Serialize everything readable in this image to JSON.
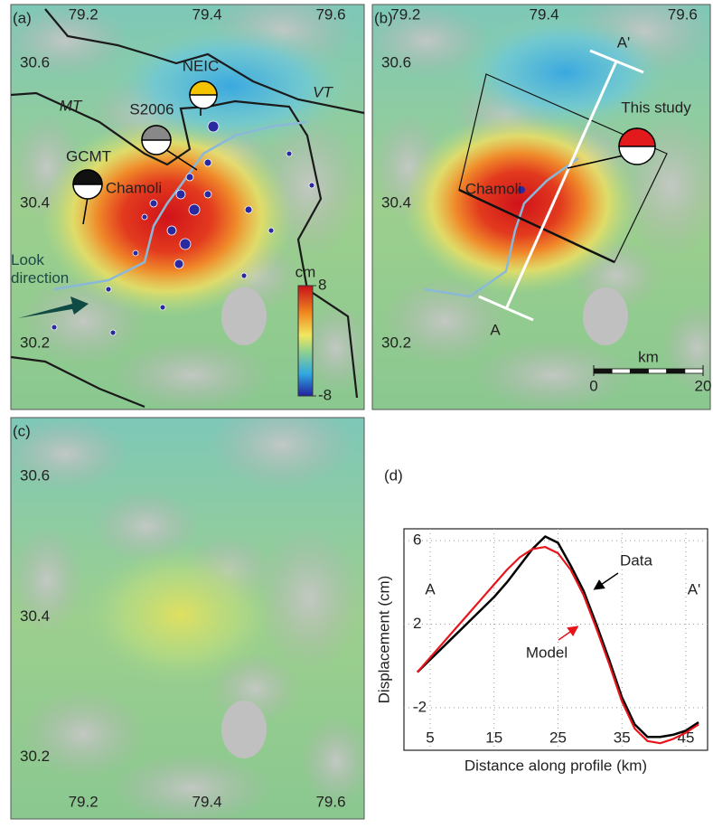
{
  "panels": [
    {
      "label": "(a)",
      "xlim": [
        79.083,
        79.654
      ],
      "ylim": [
        30.106,
        30.684
      ],
      "xticks": [
        79.2,
        79.4,
        79.6
      ],
      "yticks": [
        30.6,
        30.4,
        30.2
      ],
      "annotations": [
        "NEIC",
        "S2006",
        "GCMT",
        "MT",
        "VT",
        "Chamoli",
        "Look direction"
      ],
      "colorbar": {
        "label": "cm",
        "clim": [
          -8,
          8
        ],
        "ticks": [
          8,
          -8
        ]
      }
    },
    {
      "label": "(b)",
      "xlim": [
        79.152,
        79.64
      ],
      "ylim": [
        30.106,
        30.684
      ],
      "xticks": [
        79.2,
        79.4,
        79.6
      ],
      "yticks": [
        30.6,
        30.4,
        30.2
      ],
      "annotations": [
        "A'",
        "This study",
        "Chamoli",
        "A"
      ],
      "scale_bar": {
        "label": "km",
        "ticks": [
          0,
          20
        ]
      }
    },
    {
      "label": "(c)",
      "xlim": [
        79.083,
        79.654
      ],
      "ylim": [
        30.112,
        30.684
      ],
      "xticks": [
        79.2,
        79.4,
        79.6
      ],
      "yticks": [
        30.6,
        30.4,
        30.2
      ],
      "annotations": []
    }
  ],
  "chart_data": {
    "type": "line",
    "label": "(d)",
    "xlabel": "Distance along profile (km)",
    "ylabel": "Displacement (cm)",
    "x": [
      3,
      5,
      7,
      9,
      11,
      13,
      15,
      17,
      19,
      21,
      23,
      25,
      27,
      29,
      31,
      33,
      35,
      37,
      39,
      41,
      43,
      45,
      47
    ],
    "series": [
      {
        "name": "Data",
        "color": "#000000",
        "values": [
          -0.3,
          0.3,
          0.9,
          1.5,
          2.1,
          2.7,
          3.3,
          4.0,
          4.8,
          5.6,
          6.2,
          5.9,
          4.8,
          3.6,
          2.0,
          0.3,
          -1.5,
          -2.8,
          -3.4,
          -3.4,
          -3.3,
          -3.1,
          -2.7
        ]
      },
      {
        "name": "Model",
        "color": "#e8141c",
        "values": [
          -0.3,
          0.4,
          1.1,
          1.8,
          2.5,
          3.2,
          3.9,
          4.6,
          5.2,
          5.6,
          5.7,
          5.4,
          4.6,
          3.4,
          1.8,
          0.1,
          -1.7,
          -3.0,
          -3.6,
          -3.7,
          -3.5,
          -3.2,
          -2.8
        ]
      }
    ],
    "xlim": [
      0.9,
      48.4
    ],
    "ylim": [
      -4.04,
      6.57
    ],
    "xticks": [
      5,
      15,
      25,
      35,
      45
    ],
    "yticks": [
      6,
      2,
      -2
    ],
    "grid": true,
    "annotations": [
      "A",
      "A'"
    ]
  }
}
